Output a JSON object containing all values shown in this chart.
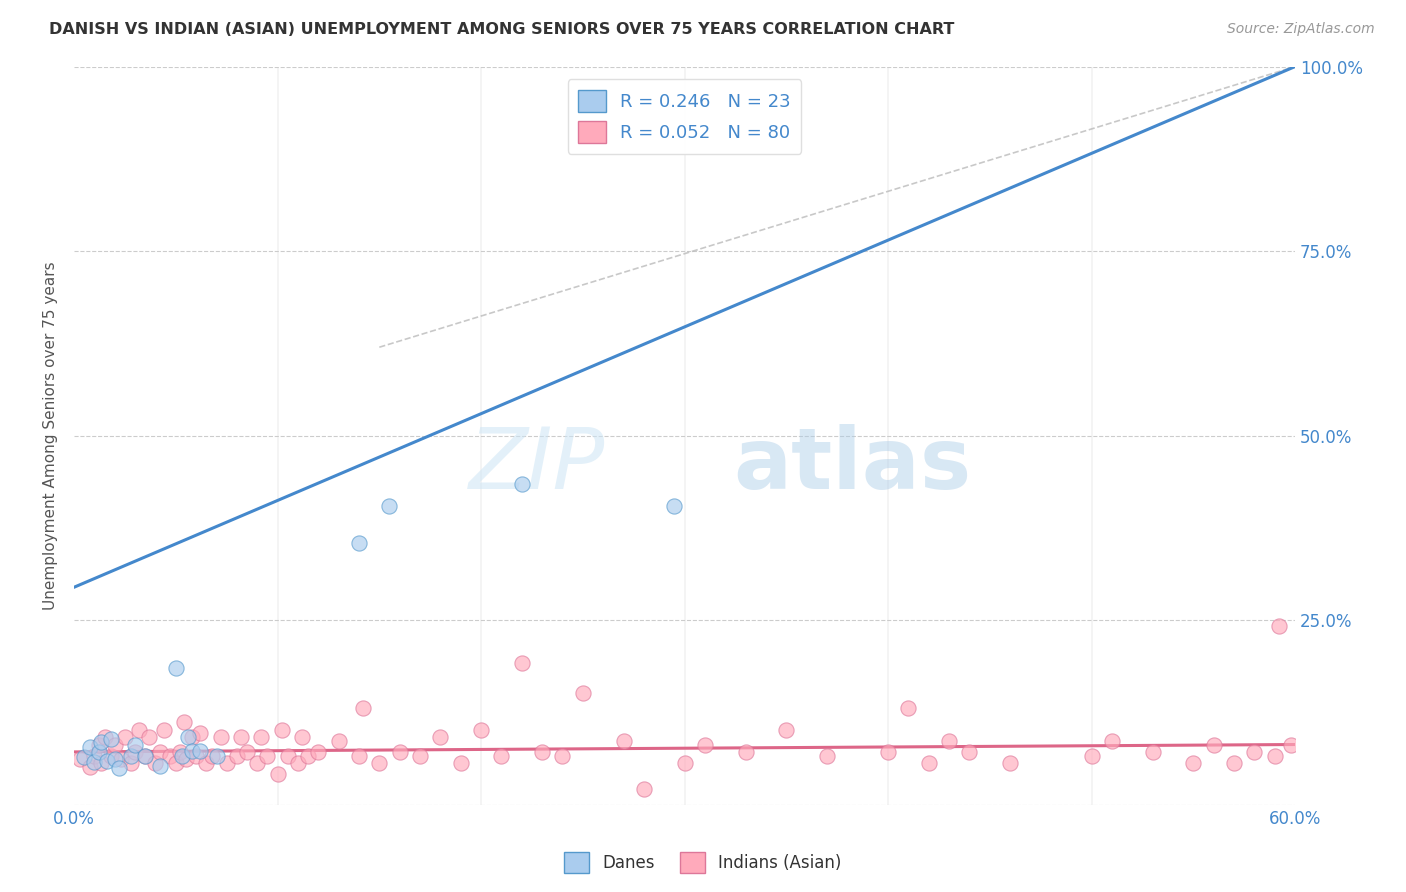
{
  "title": "DANISH VS INDIAN (ASIAN) UNEMPLOYMENT AMONG SENIORS OVER 75 YEARS CORRELATION CHART",
  "source": "Source: ZipAtlas.com",
  "ylabel": "Unemployment Among Seniors over 75 years",
  "xlim": [
    0.0,
    0.6
  ],
  "ylim": [
    0.0,
    1.0
  ],
  "ytick_vals": [
    0.0,
    0.25,
    0.5,
    0.75,
    1.0
  ],
  "ytick_labels_right": [
    "",
    "25.0%",
    "50.0%",
    "75.0%",
    "100.0%"
  ],
  "xtick_vals": [
    0.0,
    0.1,
    0.2,
    0.3,
    0.4,
    0.5,
    0.6
  ],
  "xtick_labels": [
    "0.0%",
    "",
    "",
    "",
    "",
    "",
    "60.0%"
  ],
  "background_color": "#ffffff",
  "grid_color": "#cccccc",
  "blue_color": "#aaccee",
  "blue_edge_color": "#5599cc",
  "blue_line_color": "#4488cc",
  "pink_color": "#ffaabb",
  "pink_edge_color": "#dd7799",
  "pink_line_color": "#dd6688",
  "watermark_zip": "ZIP",
  "watermark_atlas": "atlas",
  "legend_blue_label": "R = 0.246   N = 23",
  "legend_pink_label": "R = 0.052   N = 80",
  "danes_label": "Danes",
  "indians_label": "Indians (Asian)",
  "blue_trend_x": [
    0.0,
    0.6
  ],
  "blue_trend_y": [
    0.295,
    1.0
  ],
  "pink_trend_x": [
    0.0,
    0.6
  ],
  "pink_trend_y": [
    0.072,
    0.082
  ],
  "identity_line_x": [
    0.15,
    0.6
  ],
  "identity_line_y": [
    0.62,
    1.0
  ],
  "blue_dots_x": [
    0.005,
    0.008,
    0.01,
    0.012,
    0.013,
    0.016,
    0.018,
    0.02,
    0.022,
    0.028,
    0.03,
    0.035,
    0.042,
    0.05,
    0.053,
    0.056,
    0.058,
    0.062,
    0.07,
    0.14,
    0.155,
    0.22,
    0.295
  ],
  "blue_dots_y": [
    0.065,
    0.078,
    0.058,
    0.072,
    0.085,
    0.06,
    0.09,
    0.063,
    0.05,
    0.067,
    0.082,
    0.067,
    0.053,
    0.185,
    0.067,
    0.092,
    0.073,
    0.073,
    0.067,
    0.355,
    0.405,
    0.435,
    0.405
  ],
  "pink_dots_x": [
    0.003,
    0.008,
    0.01,
    0.012,
    0.013,
    0.015,
    0.018,
    0.02,
    0.023,
    0.025,
    0.028,
    0.03,
    0.032,
    0.035,
    0.037,
    0.04,
    0.042,
    0.044,
    0.047,
    0.05,
    0.052,
    0.054,
    0.055,
    0.058,
    0.06,
    0.062,
    0.065,
    0.068,
    0.072,
    0.075,
    0.08,
    0.082,
    0.085,
    0.09,
    0.092,
    0.095,
    0.1,
    0.102,
    0.105,
    0.11,
    0.112,
    0.115,
    0.12,
    0.13,
    0.14,
    0.142,
    0.15,
    0.16,
    0.17,
    0.18,
    0.19,
    0.2,
    0.21,
    0.22,
    0.23,
    0.24,
    0.25,
    0.27,
    0.28,
    0.3,
    0.31,
    0.33,
    0.35,
    0.37,
    0.4,
    0.41,
    0.42,
    0.43,
    0.44,
    0.46,
    0.5,
    0.51,
    0.53,
    0.55,
    0.56,
    0.57,
    0.58,
    0.59,
    0.592,
    0.598
  ],
  "pink_dots_y": [
    0.063,
    0.052,
    0.067,
    0.082,
    0.057,
    0.092,
    0.067,
    0.082,
    0.063,
    0.092,
    0.057,
    0.072,
    0.102,
    0.067,
    0.092,
    0.057,
    0.072,
    0.102,
    0.067,
    0.057,
    0.072,
    0.112,
    0.063,
    0.092,
    0.067,
    0.097,
    0.057,
    0.067,
    0.092,
    0.057,
    0.067,
    0.092,
    0.072,
    0.057,
    0.092,
    0.067,
    0.042,
    0.102,
    0.067,
    0.057,
    0.092,
    0.067,
    0.072,
    0.087,
    0.067,
    0.132,
    0.057,
    0.072,
    0.067,
    0.092,
    0.057,
    0.102,
    0.067,
    0.192,
    0.072,
    0.067,
    0.152,
    0.087,
    0.022,
    0.057,
    0.082,
    0.072,
    0.102,
    0.067,
    0.072,
    0.132,
    0.057,
    0.087,
    0.072,
    0.057,
    0.067,
    0.087,
    0.072,
    0.057,
    0.082,
    0.057,
    0.072,
    0.067,
    0.242,
    0.082
  ]
}
